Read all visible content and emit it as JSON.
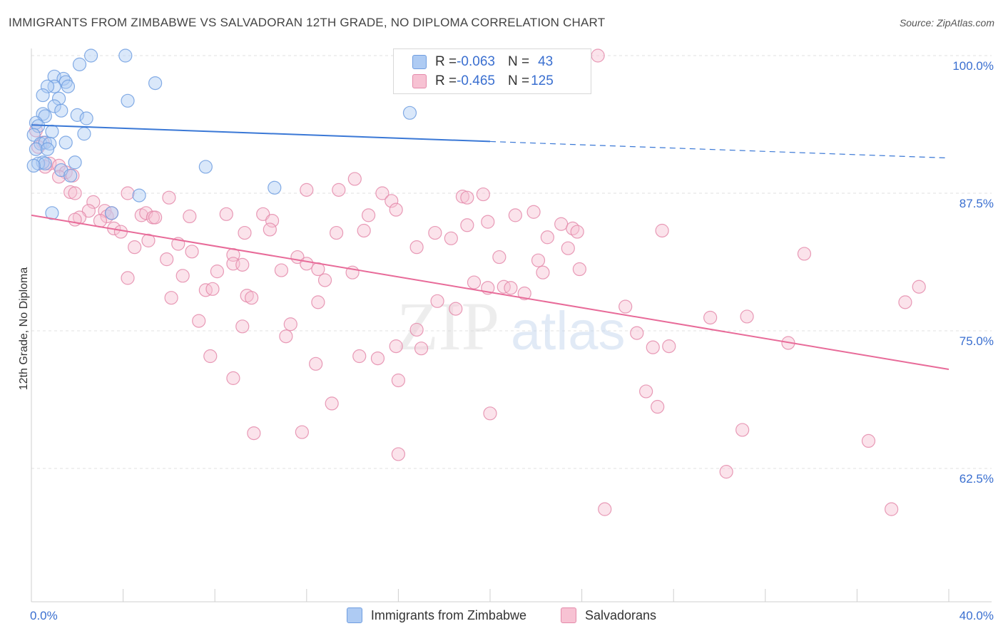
{
  "header": {
    "title": "IMMIGRANTS FROM ZIMBABWE VS SALVADORAN 12TH GRADE, NO DIPLOMA CORRELATION CHART",
    "source": "Source: ZipAtlas.com"
  },
  "legend_top": {
    "rows": [
      {
        "r_label": "R = ",
        "r_value": "-0.063",
        "n_label": "N = ",
        "n_value": "43",
        "color": "#6f9de0"
      },
      {
        "r_label": "R = ",
        "r_value": "-0.465",
        "n_label": "N = ",
        "n_value": "125",
        "color": "#e48aaa"
      }
    ]
  },
  "watermark": {
    "zip": "ZIP",
    "atlas": "atlas"
  },
  "chart_data": {
    "type": "scatter",
    "title": "IMMIGRANTS FROM ZIMBABWE VS SALVADORAN 12TH GRADE, NO DIPLOMA CORRELATION CHART",
    "xlabel": "",
    "ylabel": "12th Grade, No Diploma",
    "xlim": [
      0,
      40
    ],
    "ylim": [
      52,
      101
    ],
    "x_tick_labels": [
      "0.0%",
      "40.0%"
    ],
    "y_ticks": [
      100.0,
      87.5,
      75.0,
      62.5
    ],
    "y_tick_labels": [
      "100.0%",
      "87.5%",
      "75.0%",
      "62.5%"
    ],
    "grid": true,
    "legend_position": "bottom",
    "colors": {
      "blue": "#6f9de0",
      "blue_fill": "#aecbf3",
      "pink": "#e48aaa",
      "pink_fill": "#f7c2d3",
      "blue_line": "#3a78d6",
      "pink_line": "#e86b99"
    },
    "series": [
      {
        "name": "Immigrants from Zimbabwe",
        "r": -0.063,
        "n": 43,
        "trend": {
          "x0": 0,
          "y0": 93.7,
          "x1": 20,
          "y1": 92.2,
          "dashed_to_x": 40,
          "dashed_to_y": 90.7
        },
        "points": [
          [
            2.6,
            100.0
          ],
          [
            4.1,
            100.0
          ],
          [
            2.1,
            99.2
          ],
          [
            1.0,
            98.1
          ],
          [
            1.4,
            97.9
          ],
          [
            1.5,
            97.6
          ],
          [
            1.0,
            97.2
          ],
          [
            0.7,
            97.2
          ],
          [
            1.6,
            97.2
          ],
          [
            5.4,
            97.5
          ],
          [
            0.5,
            96.4
          ],
          [
            1.2,
            96.1
          ],
          [
            4.2,
            95.9
          ],
          [
            1.0,
            95.4
          ],
          [
            1.3,
            95.0
          ],
          [
            0.5,
            94.7
          ],
          [
            0.6,
            94.5
          ],
          [
            2.0,
            94.6
          ],
          [
            2.4,
            94.3
          ],
          [
            16.5,
            94.8
          ],
          [
            0.2,
            93.9
          ],
          [
            0.3,
            93.6
          ],
          [
            0.9,
            93.1
          ],
          [
            2.3,
            92.9
          ],
          [
            0.1,
            92.8
          ],
          [
            0.4,
            92.0
          ],
          [
            0.6,
            92.1
          ],
          [
            0.8,
            92.0
          ],
          [
            1.5,
            92.1
          ],
          [
            0.2,
            91.5
          ],
          [
            0.7,
            91.5
          ],
          [
            0.5,
            90.3
          ],
          [
            0.3,
            90.2
          ],
          [
            0.6,
            90.2
          ],
          [
            1.9,
            90.3
          ],
          [
            7.6,
            89.9
          ],
          [
            0.1,
            90.0
          ],
          [
            1.3,
            89.6
          ],
          [
            1.7,
            89.1
          ],
          [
            10.6,
            88.0
          ],
          [
            4.7,
            87.3
          ],
          [
            0.9,
            85.7
          ],
          [
            3.5,
            85.7
          ]
        ]
      },
      {
        "name": "Salvadorans",
        "r": -0.465,
        "n": 125,
        "trend": {
          "x0": 0,
          "y0": 85.5,
          "x1": 40,
          "y1": 71.5
        },
        "points": [
          [
            24.7,
            100.0
          ],
          [
            0.2,
            93.2
          ],
          [
            0.5,
            92.1
          ],
          [
            0.3,
            91.7
          ],
          [
            0.8,
            90.2
          ],
          [
            1.2,
            90.0
          ],
          [
            0.6,
            89.9
          ],
          [
            1.5,
            89.4
          ],
          [
            1.8,
            89.1
          ],
          [
            1.2,
            89.0
          ],
          [
            14.1,
            88.8
          ],
          [
            1.7,
            87.6
          ],
          [
            1.9,
            87.5
          ],
          [
            4.2,
            87.5
          ],
          [
            6.0,
            87.1
          ],
          [
            12.0,
            87.8
          ],
          [
            13.4,
            87.8
          ],
          [
            15.3,
            87.5
          ],
          [
            15.7,
            86.8
          ],
          [
            18.8,
            87.2
          ],
          [
            19.0,
            87.1
          ],
          [
            19.7,
            87.4
          ],
          [
            2.7,
            86.7
          ],
          [
            2.5,
            85.9
          ],
          [
            3.2,
            85.9
          ],
          [
            3.3,
            85.4
          ],
          [
            3.5,
            85.7
          ],
          [
            4.8,
            85.5
          ],
          [
            5.0,
            85.7
          ],
          [
            5.3,
            85.3
          ],
          [
            5.4,
            85.3
          ],
          [
            6.9,
            85.4
          ],
          [
            8.5,
            85.6
          ],
          [
            10.1,
            85.6
          ],
          [
            10.5,
            85.0
          ],
          [
            10.4,
            84.2
          ],
          [
            14.7,
            85.5
          ],
          [
            15.9,
            86.0
          ],
          [
            21.1,
            85.5
          ],
          [
            21.9,
            85.8
          ],
          [
            2.1,
            85.3
          ],
          [
            1.9,
            85.1
          ],
          [
            3.0,
            85.0
          ],
          [
            3.6,
            84.3
          ],
          [
            3.9,
            84.0
          ],
          [
            9.3,
            83.9
          ],
          [
            13.3,
            83.9
          ],
          [
            14.5,
            84.1
          ],
          [
            17.6,
            83.9
          ],
          [
            19.0,
            84.6
          ],
          [
            19.9,
            84.9
          ],
          [
            23.1,
            84.7
          ],
          [
            23.6,
            84.3
          ],
          [
            23.8,
            84.0
          ],
          [
            27.5,
            84.1
          ],
          [
            18.3,
            83.4
          ],
          [
            22.5,
            83.5
          ],
          [
            5.1,
            83.2
          ],
          [
            6.4,
            82.9
          ],
          [
            4.5,
            82.6
          ],
          [
            7.0,
            82.2
          ],
          [
            16.8,
            82.6
          ],
          [
            23.4,
            82.5
          ],
          [
            8.8,
            81.9
          ],
          [
            11.6,
            81.7
          ],
          [
            20.4,
            81.7
          ],
          [
            22.1,
            81.4
          ],
          [
            33.7,
            82.0
          ],
          [
            5.9,
            81.5
          ],
          [
            8.8,
            81.1
          ],
          [
            9.2,
            81.0
          ],
          [
            12.0,
            81.1
          ],
          [
            12.5,
            80.6
          ],
          [
            4.2,
            79.8
          ],
          [
            6.6,
            80.0
          ],
          [
            8.1,
            80.4
          ],
          [
            10.9,
            80.5
          ],
          [
            12.8,
            79.6
          ],
          [
            14.0,
            80.3
          ],
          [
            19.3,
            79.4
          ],
          [
            19.9,
            78.9
          ],
          [
            20.6,
            79.0
          ],
          [
            20.9,
            78.9
          ],
          [
            22.3,
            80.3
          ],
          [
            23.9,
            80.6
          ],
          [
            38.7,
            79.0
          ],
          [
            7.6,
            78.7
          ],
          [
            7.9,
            78.8
          ],
          [
            6.1,
            78.0
          ],
          [
            9.4,
            78.2
          ],
          [
            9.6,
            78.0
          ],
          [
            12.5,
            77.6
          ],
          [
            17.7,
            77.7
          ],
          [
            18.5,
            77.0
          ],
          [
            21.5,
            78.4
          ],
          [
            25.9,
            77.2
          ],
          [
            38.1,
            77.6
          ],
          [
            7.3,
            75.9
          ],
          [
            9.2,
            75.4
          ],
          [
            11.3,
            75.6
          ],
          [
            11.1,
            74.5
          ],
          [
            16.8,
            75.1
          ],
          [
            26.4,
            74.8
          ],
          [
            29.6,
            76.2
          ],
          [
            31.2,
            76.3
          ],
          [
            17.0,
            73.4
          ],
          [
            15.9,
            73.6
          ],
          [
            27.1,
            73.5
          ],
          [
            27.8,
            73.6
          ],
          [
            33.0,
            73.9
          ],
          [
            7.8,
            72.7
          ],
          [
            14.3,
            72.7
          ],
          [
            15.1,
            72.5
          ],
          [
            12.4,
            72.0
          ],
          [
            8.8,
            70.7
          ],
          [
            16.0,
            70.5
          ],
          [
            26.8,
            69.5
          ],
          [
            13.1,
            68.4
          ],
          [
            20.0,
            67.5
          ],
          [
            27.3,
            68.1
          ],
          [
            9.7,
            65.7
          ],
          [
            11.8,
            65.8
          ],
          [
            31.0,
            66.0
          ],
          [
            36.5,
            65.0
          ],
          [
            16.0,
            63.8
          ],
          [
            30.3,
            62.2
          ],
          [
            25.0,
            58.8
          ],
          [
            37.5,
            58.8
          ]
        ]
      }
    ]
  },
  "bottom_legend": {
    "items": [
      "Immigrants from Zimbabwe",
      "Salvadorans"
    ]
  }
}
